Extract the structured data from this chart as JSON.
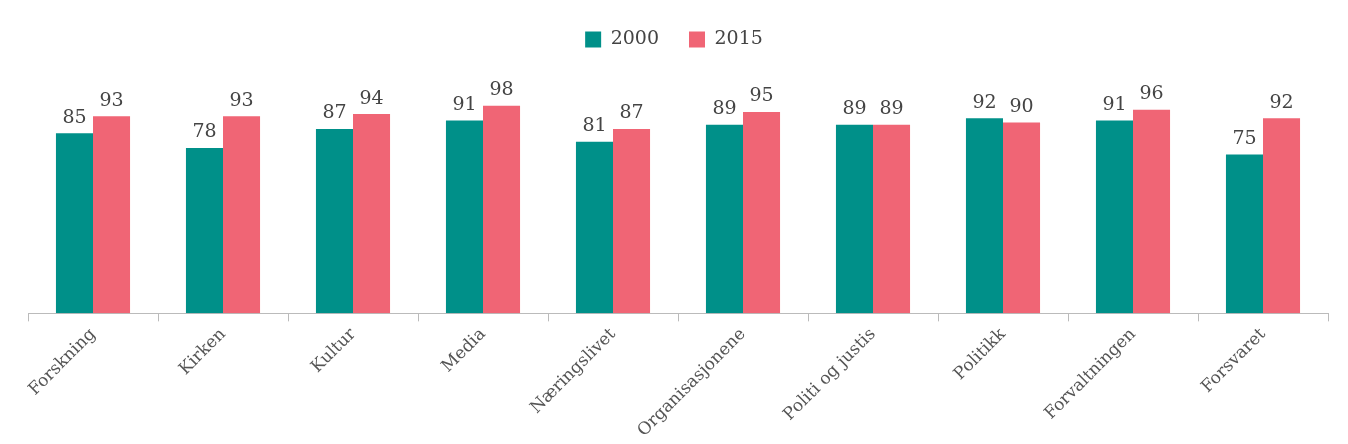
{
  "chart_data": {
    "type": "bar",
    "categories": [
      "Forskning",
      "Kirken",
      "Kultur",
      "Media",
      "Næringslivet",
      "Organisasjonene",
      "Politi og justis",
      "Politikk",
      "Forvaltningen",
      "Forsvaret"
    ],
    "series": [
      {
        "name": "2000",
        "color": "#009089",
        "values": [
          85,
          78,
          87,
          91,
          81,
          89,
          89,
          92,
          91,
          75
        ]
      },
      {
        "name": "2015",
        "color": "#f06575",
        "values": [
          93,
          93,
          94,
          98,
          87,
          95,
          89,
          90,
          96,
          92
        ]
      }
    ],
    "relative": false,
    "data_labels": true,
    "legend": "top"
  }
}
